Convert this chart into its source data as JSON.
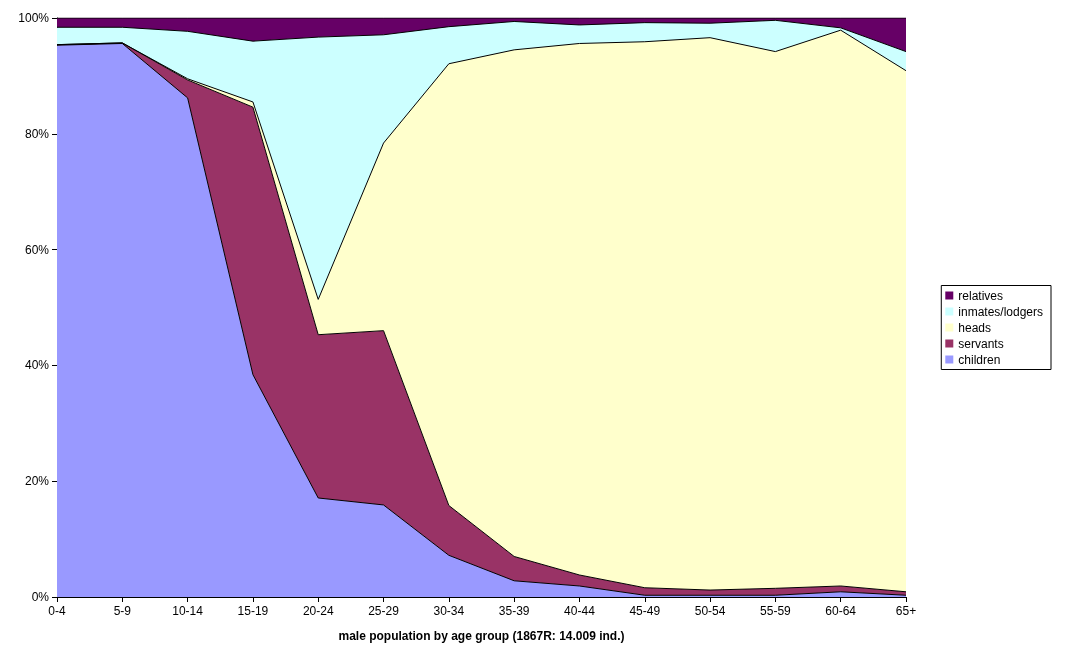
{
  "chart_data": {
    "type": "area",
    "stacked": true,
    "xlabel": "male population by age group (1867R: 14.009 ind.)",
    "categories": [
      "0-4",
      "5-9",
      "10-14",
      "15-19",
      "20-24",
      "25-29",
      "30-34",
      "35-39",
      "40-44",
      "45-49",
      "50-54",
      "55-59",
      "60-64",
      "65+"
    ],
    "series": [
      {
        "name": "children",
        "color": "#9999ff",
        "values": [
          95.3,
          95.6,
          86.2,
          38.4,
          17.1,
          15.9,
          7.2,
          2.8,
          1.9,
          0.3,
          0.3,
          0.3,
          0.9,
          0.3
        ]
      },
      {
        "name": "servants",
        "color": "#993366",
        "values": [
          0.1,
          0.1,
          3.1,
          46.2,
          28.2,
          30.1,
          8.6,
          4.2,
          1.9,
          1.3,
          0.9,
          1.2,
          1.0,
          0.6
        ]
      },
      {
        "name": "heads",
        "color": "#ffffcc",
        "values": [
          0,
          0,
          0.2,
          0.9,
          6.1,
          32.4,
          76.3,
          87.5,
          91.8,
          94.3,
          95.4,
          92.7,
          96.0,
          90.0
        ]
      },
      {
        "name": "inmates/lodgers",
        "color": "#ccffff",
        "values": [
          3.0,
          2.7,
          8.2,
          10.5,
          45.3,
          18.7,
          6.4,
          4.9,
          3.2,
          3.3,
          2.5,
          5.4,
          0.4,
          3.3
        ]
      },
      {
        "name": "relatives",
        "color": "#660066",
        "values": [
          1.6,
          1.6,
          2.3,
          4.0,
          3.3,
          2.9,
          1.5,
          0.6,
          1.2,
          0.8,
          0.9,
          0.4,
          1.7,
          5.8
        ]
      }
    ],
    "ylim": [
      0,
      100
    ],
    "yticks": [
      {
        "value": 0,
        "label": "0%"
      },
      {
        "value": 20,
        "label": "20%"
      },
      {
        "value": 40,
        "label": "40%"
      },
      {
        "value": 60,
        "label": "60%"
      },
      {
        "value": 80,
        "label": "80%"
      },
      {
        "value": 100,
        "label": "100%"
      }
    ],
    "legend": "right",
    "grid": false
  }
}
